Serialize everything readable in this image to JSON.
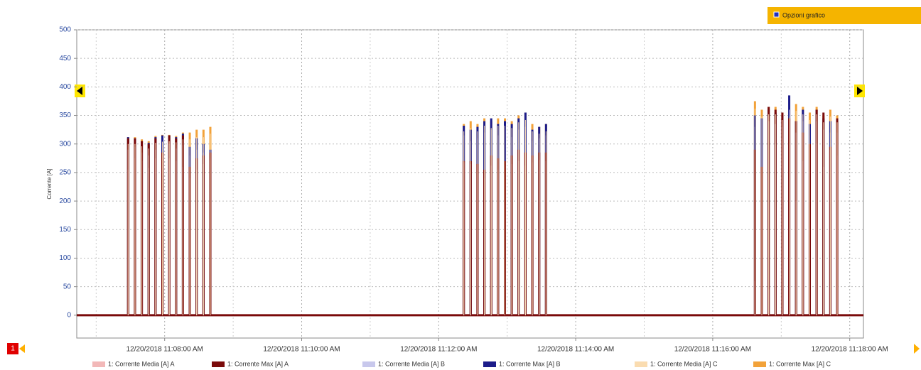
{
  "chart_data": {
    "type": "spike",
    "button": "Opzioni grafico",
    "page_number": "1",
    "ylabel": "Corrente [A]",
    "ylim": [
      -40,
      500
    ],
    "yticks": [
      0,
      50,
      100,
      150,
      200,
      250,
      300,
      350,
      400,
      450,
      500
    ],
    "xlim": [
      "2018-12-20T11:06:43",
      "2018-12-20T11:18:12"
    ],
    "xticks": [
      {
        "value": "2018-12-20T11:08:00",
        "label": "12/20/2018 11:08:00 AM"
      },
      {
        "value": "2018-12-20T11:10:00",
        "label": "12/20/2018 11:10:00 AM"
      },
      {
        "value": "2018-12-20T11:12:00",
        "label": "12/20/2018 11:12:00 AM"
      },
      {
        "value": "2018-12-20T11:14:00",
        "label": "12/20/2018 11:14:00 AM"
      },
      {
        "value": "2018-12-20T11:16:00",
        "label": "12/20/2018 11:16:00 AM"
      },
      {
        "value": "2018-12-20T11:18:00",
        "label": "12/20/2018 11:18:00 AM"
      }
    ],
    "xminorticks": [
      "2018-12-20T11:07:00",
      "2018-12-20T11:09:00",
      "2018-12-20T11:11:00",
      "2018-12-20T11:13:00",
      "2018-12-20T11:15:00",
      "2018-12-20T11:17:00"
    ],
    "grid": true,
    "x": [
      "2018-12-20T11:07:28",
      "2018-12-20T11:07:34",
      "2018-12-20T11:07:40",
      "2018-12-20T11:07:46",
      "2018-12-20T11:07:52",
      "2018-12-20T11:07:58",
      "2018-12-20T11:08:04",
      "2018-12-20T11:08:10",
      "2018-12-20T11:08:16",
      "2018-12-20T11:08:22",
      "2018-12-20T11:08:28",
      "2018-12-20T11:08:34",
      "2018-12-20T11:08:40",
      "2018-12-20T11:12:22",
      "2018-12-20T11:12:28",
      "2018-12-20T11:12:34",
      "2018-12-20T11:12:40",
      "2018-12-20T11:12:46",
      "2018-12-20T11:12:52",
      "2018-12-20T11:12:58",
      "2018-12-20T11:13:04",
      "2018-12-20T11:13:10",
      "2018-12-20T11:13:16",
      "2018-12-20T11:13:22",
      "2018-12-20T11:13:28",
      "2018-12-20T11:13:34",
      "2018-12-20T11:16:37",
      "2018-12-20T11:16:43",
      "2018-12-20T11:16:49",
      "2018-12-20T11:16:55",
      "2018-12-20T11:17:01",
      "2018-12-20T11:17:07",
      "2018-12-20T11:17:13",
      "2018-12-20T11:17:19",
      "2018-12-20T11:17:25",
      "2018-12-20T11:17:31",
      "2018-12-20T11:17:37",
      "2018-12-20T11:17:43",
      "2018-12-20T11:17:49"
    ],
    "series": [
      {
        "name": "1: Corrente Media [A] A",
        "color": "#f2b8b8",
        "width": 1,
        "values": [
          255,
          275,
          270,
          258,
          275,
          250,
          275,
          270,
          260,
          240,
          255,
          265,
          270,
          268,
          265,
          250,
          240,
          262,
          255,
          250,
          265,
          270,
          262,
          268,
          272,
          270,
          60,
          220,
          45,
          300,
          310,
          300,
          200,
          270,
          60,
          300,
          260,
          290,
          280
        ]
      },
      {
        "name": "1: Corrente Max [A] A",
        "color": "#7a0a0a",
        "width": 3,
        "values": [
          310,
          310,
          305,
          300,
          310,
          285,
          315,
          310,
          315,
          260,
          275,
          280,
          285,
          270,
          270,
          265,
          255,
          280,
          275,
          270,
          280,
          290,
          285,
          280,
          285,
          285,
          290,
          260,
          365,
          360,
          355,
          345,
          340,
          320,
          300,
          360,
          355,
          295,
          345
        ]
      },
      {
        "name": "1: Corrente Media [A] B",
        "color": "#c8c8ec",
        "width": 1,
        "values": [
          290,
          295,
          285,
          280,
          290,
          295,
          300,
          292,
          298,
          280,
          290,
          285,
          275,
          315,
          305,
          310,
          320,
          325,
          315,
          318,
          312,
          325,
          330,
          305,
          310,
          315,
          330,
          325,
          340,
          335,
          330,
          360,
          320,
          340,
          315,
          340,
          325,
          320,
          320
        ]
      },
      {
        "name": "1: Corrente Max [A] B",
        "color": "#1c1c8a",
        "width": 3,
        "values": [
          312,
          310,
          305,
          302,
          312,
          315,
          315,
          312,
          318,
          295,
          310,
          300,
          290,
          332,
          325,
          330,
          340,
          345,
          335,
          340,
          335,
          345,
          355,
          325,
          330,
          335,
          350,
          345,
          360,
          355,
          350,
          385,
          340,
          360,
          335,
          360,
          345,
          340,
          340
        ]
      },
      {
        "name": "1: Corrente Media [A] C",
        "color": "#fadcb0",
        "width": 1,
        "values": [
          300,
          300,
          296,
          292,
          302,
          304,
          305,
          303,
          308,
          308,
          312,
          312,
          318,
          322,
          328,
          322,
          332,
          328,
          332,
          332,
          328,
          338,
          342,
          322,
          318,
          322,
          362,
          348,
          352,
          352,
          342,
          348,
          358,
          352,
          342,
          352,
          338,
          348,
          338
        ]
      },
      {
        "name": "1: Corrente Max [A] C",
        "color": "#f2a23a",
        "width": 3,
        "values": [
          312,
          312,
          308,
          305,
          314,
          316,
          316,
          314,
          320,
          320,
          325,
          325,
          330,
          335,
          340,
          335,
          345,
          340,
          345,
          345,
          340,
          350,
          355,
          335,
          330,
          335,
          375,
          360,
          365,
          365,
          355,
          360,
          370,
          365,
          355,
          365,
          350,
          360,
          350
        ]
      }
    ]
  }
}
